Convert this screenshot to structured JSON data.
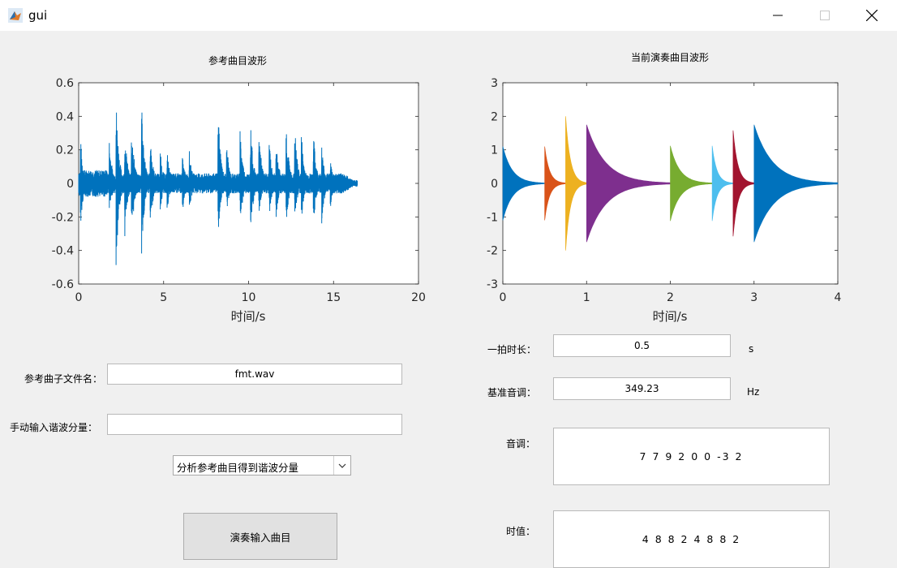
{
  "window": {
    "title": "gui",
    "minimize_icon": "minimize-icon",
    "maximize_icon": "maximize-icon",
    "close_icon": "close-icon"
  },
  "left_plot": {
    "title": "参考曲目波形",
    "xlabel": "时间/s"
  },
  "right_plot": {
    "title": "当前演奏曲目波形",
    "xlabel": "时间/s"
  },
  "chart_data": [
    {
      "type": "line",
      "title": "参考曲目波形",
      "xlabel": "时间/s",
      "ylabel": "",
      "xlim": [
        0,
        20
      ],
      "ylim": [
        -0.6,
        0.6
      ],
      "xticks": [
        "0",
        "5",
        "10",
        "15",
        "20"
      ],
      "yticks": [
        "0.6",
        "0.4",
        "0.2",
        "0",
        "-0.2",
        "-0.4",
        "-0.6"
      ],
      "grid": false,
      "series": [
        {
          "color": "#0072bd",
          "duration": 16.4,
          "envelope_peaks": [
            {
              "t": 0.1,
              "up": 0.29,
              "down": 0.27
            },
            {
              "t": 1.8,
              "up": 0.28,
              "down": 0.2
            },
            {
              "t": 2.2,
              "up": 0.53,
              "down": 0.56
            },
            {
              "t": 2.7,
              "up": 0.36,
              "down": 0.35
            },
            {
              "t": 3.1,
              "up": 0.42,
              "down": 0.38
            },
            {
              "t": 3.7,
              "up": 0.5,
              "down": 0.46
            },
            {
              "t": 4.2,
              "up": 0.33,
              "down": 0.3
            },
            {
              "t": 4.8,
              "up": 0.2,
              "down": 0.17
            },
            {
              "t": 5.2,
              "up": 0.21,
              "down": 0.2
            },
            {
              "t": 6.1,
              "up": 0.18,
              "down": 0.2
            },
            {
              "t": 6.5,
              "up": 0.21,
              "down": 0.2
            },
            {
              "t": 8.2,
              "up": 0.48,
              "down": 0.35
            },
            {
              "t": 8.7,
              "up": 0.26,
              "down": 0.2
            },
            {
              "t": 9.5,
              "up": 0.35,
              "down": 0.27
            },
            {
              "t": 10.1,
              "up": 0.4,
              "down": 0.37
            },
            {
              "t": 10.6,
              "up": 0.36,
              "down": 0.22
            },
            {
              "t": 11.2,
              "up": 0.28,
              "down": 0.22
            },
            {
              "t": 11.6,
              "up": 0.32,
              "down": 0.24
            },
            {
              "t": 12.2,
              "up": 0.41,
              "down": 0.27
            },
            {
              "t": 12.7,
              "up": 0.39,
              "down": 0.26
            },
            {
              "t": 13.1,
              "up": 0.33,
              "down": 0.25
            },
            {
              "t": 13.8,
              "up": 0.35,
              "down": 0.28
            },
            {
              "t": 14.3,
              "up": 0.24,
              "down": 0.26
            },
            {
              "t": 14.8,
              "up": 0.16,
              "down": 0.18
            },
            {
              "t": 15.4,
              "up": 0.06,
              "down": 0.06
            }
          ]
        }
      ]
    },
    {
      "type": "area",
      "title": "当前演奏曲目波形",
      "xlabel": "时间/s",
      "ylabel": "",
      "xlim": [
        0,
        4
      ],
      "ylim": [
        -3,
        3
      ],
      "xticks": [
        "0",
        "1",
        "2",
        "3",
        "4"
      ],
      "yticks": [
        "3",
        "2",
        "1",
        "0",
        "-1",
        "-2",
        "-3"
      ],
      "grid": false,
      "series": [
        {
          "color": "#0072bd",
          "start": 0.0,
          "end": 0.5,
          "peak": 1.1
        },
        {
          "color": "#d95319",
          "start": 0.5,
          "end": 0.75,
          "peak": 1.1
        },
        {
          "color": "#edb120",
          "start": 0.75,
          "end": 1.0,
          "peak": 2.0
        },
        {
          "color": "#7e2f8e",
          "start": 1.0,
          "end": 2.0,
          "peak": 1.75
        },
        {
          "color": "#77ac30",
          "start": 2.0,
          "end": 2.5,
          "peak": 1.12
        },
        {
          "color": "#4dbeee",
          "start": 2.5,
          "end": 2.75,
          "peak": 1.12
        },
        {
          "color": "#a2142f",
          "start": 2.75,
          "end": 3.0,
          "peak": 1.58
        },
        {
          "color": "#0072bd",
          "start": 3.0,
          "end": 4.0,
          "peak": 1.75
        }
      ]
    }
  ],
  "form": {
    "ref_file_label": "参考曲子文件名：",
    "ref_file_value": "fmt.wav",
    "harmonics_label": "手动输入谐波分量：",
    "harmonics_value": "",
    "analysis_select": "分析参考曲目得到谐波分量",
    "play_button": "演奏输入曲目",
    "beat_label": "一拍时长：",
    "beat_value": "0.5",
    "beat_unit": "s",
    "base_label": "基准音调：",
    "base_value": "349.23",
    "base_unit": "Hz",
    "pitch_label": "音调：",
    "pitch_value": "7 7 9 2 0 0 -3 2",
    "duration_label": "时值：",
    "duration_value": "4 8 8 2 4 8 8 2"
  }
}
